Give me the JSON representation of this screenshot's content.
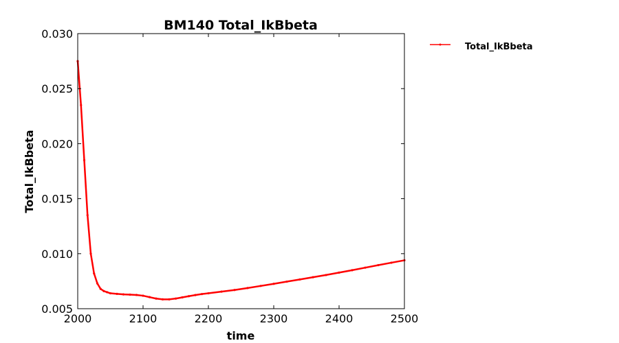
{
  "chart_data": {
    "type": "line",
    "title": "BM140 Total_IkBbeta",
    "xlabel": "time",
    "ylabel": "Total_IkBbeta",
    "xlim": [
      2000,
      2500
    ],
    "ylim": [
      0.005,
      0.03
    ],
    "x_ticks": [
      "2000",
      "2100",
      "2200",
      "2300",
      "2400",
      "2500"
    ],
    "y_ticks": [
      "0.005",
      "0.010",
      "0.015",
      "0.020",
      "0.025",
      "0.030"
    ],
    "grid": false,
    "legend_position": "outside-top-right",
    "series": [
      {
        "name": "Total_IkBbeta",
        "color": "#ff0000",
        "marker": "dot",
        "x": [
          2000,
          2005,
          2010,
          2015,
          2020,
          2025,
          2030,
          2035,
          2040,
          2045,
          2050,
          2060,
          2070,
          2080,
          2090,
          2100,
          2110,
          2120,
          2130,
          2140,
          2150,
          2160,
          2170,
          2180,
          2190,
          2200,
          2220,
          2240,
          2260,
          2280,
          2300,
          2320,
          2340,
          2360,
          2380,
          2400,
          2420,
          2440,
          2460,
          2480,
          2500
        ],
        "y": [
          0.0275,
          0.0235,
          0.0185,
          0.0135,
          0.01,
          0.0082,
          0.0073,
          0.0068,
          0.0066,
          0.0065,
          0.0064,
          0.00635,
          0.0063,
          0.00628,
          0.00625,
          0.00618,
          0.00605,
          0.00592,
          0.00585,
          0.00585,
          0.00592,
          0.00603,
          0.00614,
          0.00624,
          0.00633,
          0.0064,
          0.00655,
          0.0067,
          0.00688,
          0.00707,
          0.00726,
          0.00746,
          0.00766,
          0.00786,
          0.00806,
          0.00828,
          0.0085,
          0.00873,
          0.00896,
          0.00918,
          0.0094
        ]
      }
    ]
  }
}
